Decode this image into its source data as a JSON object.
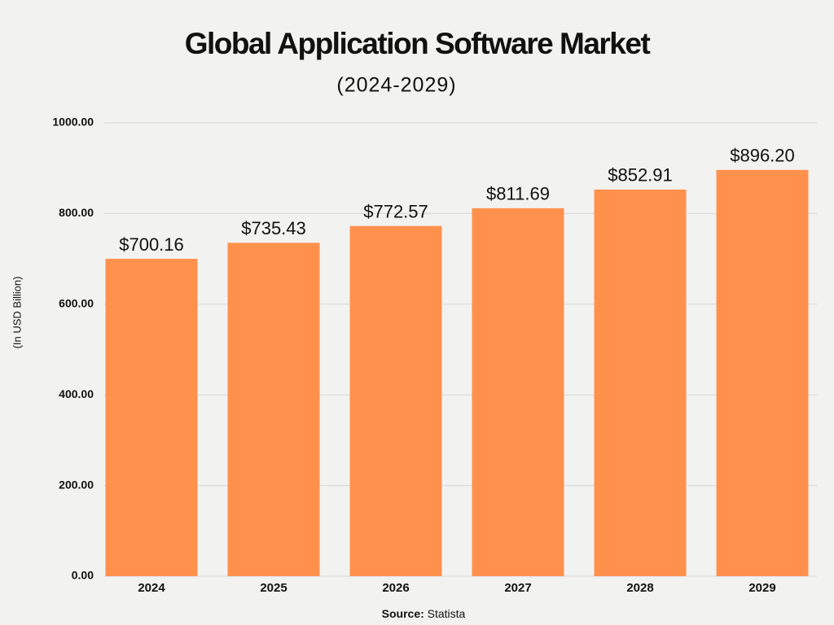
{
  "chart_data": {
    "type": "bar",
    "title": "Global Application Software Market",
    "subtitle": "(2024-2029)",
    "y_label": "(In USD Billion)",
    "source": {
      "label": "Source:",
      "text": "Statista"
    },
    "categories": [
      "2024",
      "2025",
      "2026",
      "2027",
      "2028",
      "2029"
    ],
    "values": [
      700.16,
      735.43,
      772.57,
      811.69,
      852.91,
      896.2
    ],
    "value_labels": [
      "$700.16",
      "$735.43",
      "$772.57",
      "$811.69",
      "$852.91",
      "$896.20"
    ],
    "color": "#ff914d",
    "ylim": [
      0,
      1000
    ],
    "yticks": [
      {
        "value": 0,
        "label": "0.00"
      },
      {
        "value": 200,
        "label": "200.00"
      },
      {
        "value": 400,
        "label": "400.00"
      },
      {
        "value": 600,
        "label": "600.00"
      },
      {
        "value": 800,
        "label": "800.00"
      },
      {
        "value": 1000,
        "label": "1000.00"
      }
    ],
    "grid": true
  }
}
